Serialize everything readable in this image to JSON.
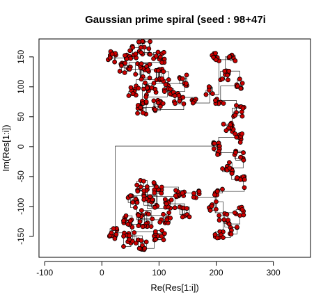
{
  "chart_data": {
    "type": "scatter",
    "title": "Gaussian prime spiral (seed :  98+47i",
    "xlabel": "Re(Res[1:i])",
    "ylabel": "Im(Res[1:i])",
    "xlim": [
      -110,
      365
    ],
    "ylim": [
      -185,
      180
    ],
    "xticks": [
      -100,
      0,
      100,
      200,
      300
    ],
    "yticks": [
      -150,
      -100,
      -50,
      0,
      50,
      100,
      150
    ],
    "grid": false,
    "legend": "none",
    "point_fill": "#cc0000",
    "point_stroke": "#000000",
    "line_color": "#000000",
    "description": "Gaussian primes visited by the spiral walk; points connected by rectilinear path segments. Upper lobe spans Re 10–250, Im 0–170; lower lobe mirrors it for Im < 0.",
    "clusters": [
      {
        "re": 18,
        "im": 150,
        "spread": 9,
        "n": 10
      },
      {
        "re": 48,
        "im": 158,
        "spread": 12,
        "n": 12
      },
      {
        "re": 75,
        "im": 165,
        "spread": 12,
        "n": 14
      },
      {
        "re": 100,
        "im": 150,
        "spread": 10,
        "n": 10
      },
      {
        "re": 40,
        "im": 130,
        "spread": 10,
        "n": 10
      },
      {
        "re": 70,
        "im": 125,
        "spread": 14,
        "n": 16
      },
      {
        "re": 105,
        "im": 118,
        "spread": 12,
        "n": 12
      },
      {
        "re": 55,
        "im": 95,
        "spread": 10,
        "n": 10
      },
      {
        "re": 85,
        "im": 95,
        "spread": 12,
        "n": 12
      },
      {
        "re": 118,
        "im": 95,
        "spread": 10,
        "n": 10
      },
      {
        "re": 145,
        "im": 110,
        "spread": 10,
        "n": 8
      },
      {
        "re": 70,
        "im": 65,
        "spread": 12,
        "n": 12
      },
      {
        "re": 100,
        "im": 70,
        "spread": 10,
        "n": 10
      },
      {
        "re": 135,
        "im": 80,
        "spread": 10,
        "n": 10
      },
      {
        "re": 160,
        "im": 75,
        "spread": 8,
        "n": 6
      },
      {
        "re": 190,
        "im": 95,
        "spread": 8,
        "n": 6
      },
      {
        "re": 200,
        "im": 150,
        "spread": 8,
        "n": 8
      },
      {
        "re": 228,
        "im": 148,
        "spread": 6,
        "n": 6
      },
      {
        "re": 215,
        "im": 120,
        "spread": 10,
        "n": 10
      },
      {
        "re": 240,
        "im": 105,
        "spread": 8,
        "n": 8
      },
      {
        "re": 205,
        "im": 75,
        "spread": 8,
        "n": 6
      },
      {
        "re": 240,
        "im": 60,
        "spread": 10,
        "n": 10
      },
      {
        "re": 220,
        "im": 35,
        "spread": 10,
        "n": 10
      },
      {
        "re": 240,
        "im": 15,
        "spread": 8,
        "n": 8
      },
      {
        "re": 200,
        "im": 5,
        "spread": 6,
        "n": 6
      },
      {
        "re": 18,
        "im": -145,
        "spread": 9,
        "n": 10
      },
      {
        "re": 48,
        "im": -155,
        "spread": 12,
        "n": 12
      },
      {
        "re": 70,
        "im": -165,
        "spread": 10,
        "n": 10
      },
      {
        "re": 100,
        "im": -148,
        "spread": 10,
        "n": 10
      },
      {
        "re": 45,
        "im": -125,
        "spread": 10,
        "n": 10
      },
      {
        "re": 75,
        "im": -120,
        "spread": 14,
        "n": 16
      },
      {
        "re": 110,
        "im": -118,
        "spread": 10,
        "n": 10
      },
      {
        "re": 55,
        "im": -92,
        "spread": 10,
        "n": 10
      },
      {
        "re": 85,
        "im": -90,
        "spread": 12,
        "n": 12
      },
      {
        "re": 120,
        "im": -95,
        "spread": 10,
        "n": 10
      },
      {
        "re": 145,
        "im": -110,
        "spread": 10,
        "n": 8
      },
      {
        "re": 70,
        "im": -65,
        "spread": 10,
        "n": 10
      },
      {
        "re": 100,
        "im": -70,
        "spread": 10,
        "n": 10
      },
      {
        "re": 135,
        "im": -80,
        "spread": 10,
        "n": 10
      },
      {
        "re": 165,
        "im": -80,
        "spread": 8,
        "n": 6
      },
      {
        "re": 195,
        "im": -100,
        "spread": 8,
        "n": 6
      },
      {
        "re": 205,
        "im": -148,
        "spread": 8,
        "n": 8
      },
      {
        "re": 230,
        "im": -140,
        "spread": 8,
        "n": 6
      },
      {
        "re": 215,
        "im": -120,
        "spread": 10,
        "n": 10
      },
      {
        "re": 240,
        "im": -108,
        "spread": 8,
        "n": 8
      },
      {
        "re": 205,
        "im": -75,
        "spread": 8,
        "n": 6
      },
      {
        "re": 240,
        "im": -60,
        "spread": 10,
        "n": 10
      },
      {
        "re": 220,
        "im": -35,
        "spread": 10,
        "n": 10
      },
      {
        "re": 240,
        "im": -15,
        "spread": 8,
        "n": 8
      },
      {
        "re": 200,
        "im": -8,
        "spread": 6,
        "n": 6
      }
    ]
  }
}
